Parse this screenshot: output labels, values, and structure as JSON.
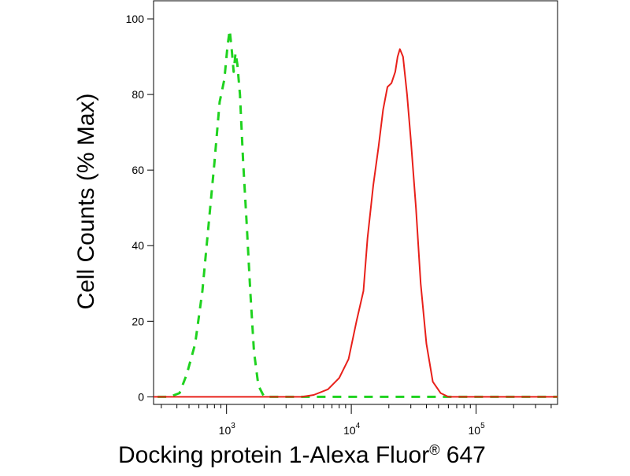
{
  "chart_data": {
    "type": "line",
    "title": "",
    "ylabel": "Cell Counts (% Max)",
    "xlabel": {
      "text": "Docking protein 1-Alexa Fluor",
      "sup": "®",
      "suffix": " 647"
    },
    "xscale": "log",
    "xlim": [
      260,
      450000
    ],
    "ylim": [
      -2,
      105
    ],
    "yticks": [
      0,
      20,
      40,
      60,
      80,
      100
    ],
    "xticks": [
      {
        "value": 1000,
        "base": "10",
        "exp": "3"
      },
      {
        "value": 10000,
        "base": "10",
        "exp": "4"
      },
      {
        "value": 100000,
        "base": "10",
        "exp": "5"
      }
    ],
    "grid": false,
    "series": [
      {
        "color": "#1fd21f",
        "dash": "dashed",
        "points": [
          [
            280,
            0
          ],
          [
            350,
            0
          ],
          [
            420,
            1
          ],
          [
            480,
            6
          ],
          [
            560,
            14
          ],
          [
            640,
            28
          ],
          [
            720,
            46
          ],
          [
            800,
            62
          ],
          [
            880,
            78
          ],
          [
            960,
            84
          ],
          [
            1020,
            93
          ],
          [
            1060,
            97
          ],
          [
            1100,
            92
          ],
          [
            1140,
            86
          ],
          [
            1180,
            91
          ],
          [
            1220,
            88
          ],
          [
            1280,
            80
          ],
          [
            1360,
            62
          ],
          [
            1450,
            46
          ],
          [
            1550,
            28
          ],
          [
            1660,
            12
          ],
          [
            1800,
            3
          ],
          [
            2000,
            0
          ],
          [
            2600,
            0
          ],
          [
            5000,
            0
          ],
          [
            20000,
            0
          ],
          [
            60000,
            0
          ],
          [
            200000,
            0
          ],
          [
            450000,
            0
          ]
        ]
      },
      {
        "color": "#e8201a",
        "dash": "solid",
        "points": [
          [
            260,
            0
          ],
          [
            2000,
            0
          ],
          [
            4000,
            0
          ],
          [
            5000,
            0.5
          ],
          [
            6500,
            2
          ],
          [
            8000,
            5
          ],
          [
            9500,
            10
          ],
          [
            11000,
            20
          ],
          [
            12500,
            28
          ],
          [
            13500,
            42
          ],
          [
            15000,
            56
          ],
          [
            16500,
            66
          ],
          [
            18000,
            76
          ],
          [
            19500,
            82
          ],
          [
            21000,
            83
          ],
          [
            22500,
            86
          ],
          [
            23500,
            90
          ],
          [
            24500,
            92
          ],
          [
            26000,
            90
          ],
          [
            28000,
            80
          ],
          [
            30000,
            68
          ],
          [
            33000,
            50
          ],
          [
            36000,
            30
          ],
          [
            40000,
            14
          ],
          [
            45000,
            4
          ],
          [
            52000,
            1
          ],
          [
            60000,
            0
          ],
          [
            100000,
            0
          ],
          [
            450000,
            0
          ]
        ]
      }
    ]
  }
}
